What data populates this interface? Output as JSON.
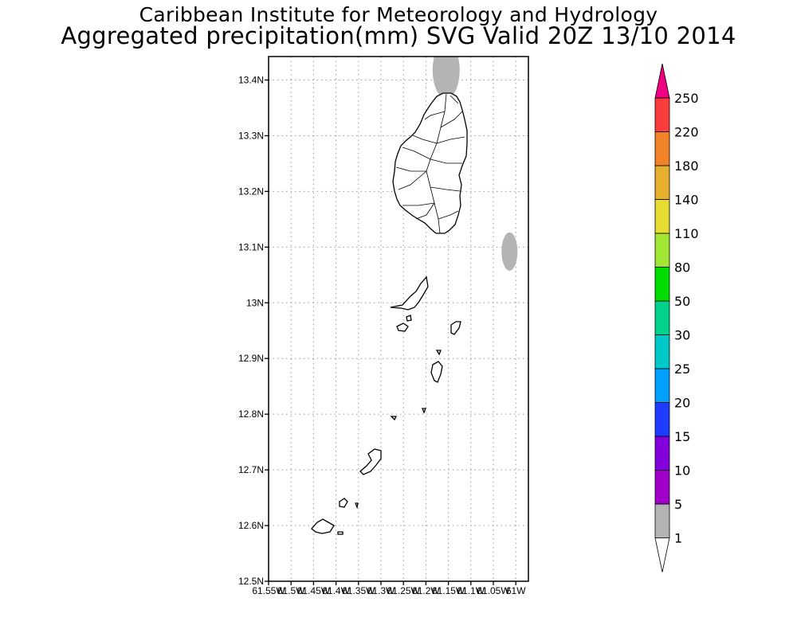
{
  "header": {
    "institute": "Caribbean Institute for Meteorology and Hydrology",
    "product": "Aggregated precipitation(mm) SVG Valid 20Z 13/10 2014"
  },
  "map": {
    "region": "St. Vincent and the Grenadines",
    "lat_ticks": [
      "13.4N",
      "13.3N",
      "13.2N",
      "13.1N",
      "13N",
      "12.9N",
      "12.8N",
      "12.7N",
      "12.6N",
      "12.5N"
    ],
    "lon_ticks": [
      "61.55W",
      "61.5W",
      "61.45W",
      "61.4W",
      "61.35W",
      "61.3W",
      "61.25W",
      "61.2W",
      "61.15W",
      "61.1W",
      "61.05W",
      "61W"
    ],
    "lat_range": [
      12.5,
      13.44
    ],
    "lon_range": [
      -61.55,
      -60.98
    ],
    "gridlines": true,
    "precip_patches": [
      {
        "label": "1-5 mm",
        "color": "#b4b4b4",
        "center_lon": -61.155,
        "center_lat": 13.418
      },
      {
        "label": "1-5 mm",
        "color": "#b4b4b4",
        "center_lon": -61.014,
        "center_lat": 13.092
      }
    ]
  },
  "legend": {
    "levels": [
      "1",
      "5",
      "10",
      "15",
      "20",
      "25",
      "30",
      "50",
      "80",
      "110",
      "140",
      "180",
      "220",
      "250"
    ],
    "colors": [
      "#b4b4b4",
      "#a000c8",
      "#8200dc",
      "#1e3cff",
      "#00a0ff",
      "#00c8c8",
      "#00d28c",
      "#00dc00",
      "#a0e632",
      "#e6dc32",
      "#e6af2d",
      "#f08228",
      "#fa3c3c",
      "#f00082"
    ],
    "placement": "right"
  }
}
